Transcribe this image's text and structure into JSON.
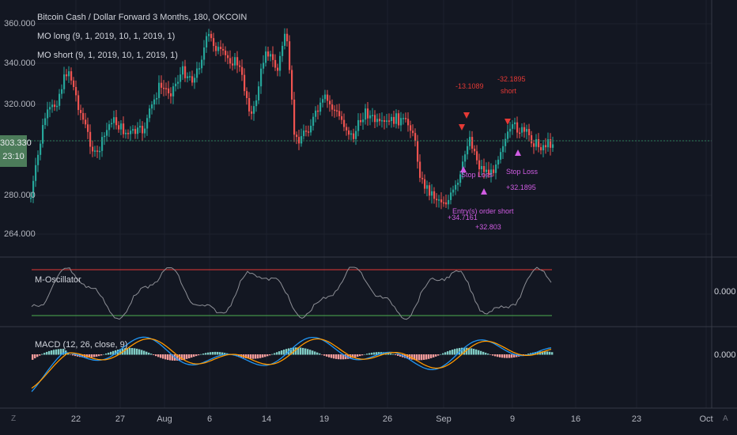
{
  "legend": {
    "title": "Bitcoin Cash / Dollar Forward 3 Months, 180, OKCOIN",
    "line1": "MO long (9, 1, 2019, 10, 1, 2019, 1)",
    "line2": "MO short (9, 1, 2019, 10, 1, 2019, 1)"
  },
  "price_axis": {
    "ticks": [
      "360.000",
      "340.000",
      "320.000",
      "280.000",
      "264.000"
    ],
    "current_price": "303.330",
    "countdown": "23:10"
  },
  "time_axis": {
    "ticks": [
      "22",
      "27",
      "Aug",
      "6",
      "14",
      "19",
      "26",
      "Sep",
      "9",
      "16",
      "23",
      "Oct"
    ]
  },
  "oscillator": {
    "label": "M-Oscillator",
    "value": "0.000"
  },
  "macd": {
    "label": "MACD (12, 26, close, 9)",
    "value": "0.000"
  },
  "annotations": {
    "short_value": "-32.1895",
    "short_label": "short",
    "stop_loss_right": "Stop Loss",
    "stop_loss_right_val": "+32.1895",
    "stop_loss_left": "Stop Loss",
    "entry_short": "Entry(s) order short",
    "entry_short_val": "+32.803",
    "val_left": "+34.7161",
    "cluster_top": "-13.1089"
  },
  "corner": {
    "left": "Z",
    "right": "A"
  },
  "colors": {
    "background": "#131722",
    "up_candle": "#26a69a",
    "down_candle": "#ef5350",
    "macd_line": "#2196f3",
    "signal_line": "#ff9800",
    "osc_upper": "#e53935",
    "osc_lower": "#4caf50"
  }
}
